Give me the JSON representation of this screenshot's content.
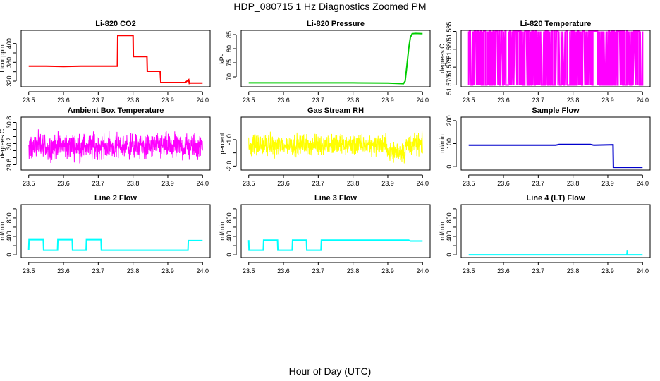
{
  "title": "HDP_080715  1 Hz Diagnostics Zoomed PM",
  "xlabel": "Hour of Day (UTC)",
  "chart_data": [
    {
      "type": "line",
      "title": "Li-820 CO2",
      "ylabel": "Licor ppm",
      "color": "#ff0000",
      "xlim": [
        23.5,
        24.0
      ],
      "ylim": [
        308,
        428
      ],
      "xticks": [
        "23.5",
        "23.6",
        "23.7",
        "23.8",
        "23.9",
        "24.0"
      ],
      "yticks": [
        320,
        340,
        360,
        380,
        400
      ],
      "yticklabels": [
        "320",
        "",
        "360",
        "",
        "400"
      ],
      "series": [
        {
          "x": [
            23.5,
            23.55,
            23.6,
            23.65,
            23.7,
            23.755,
            23.756,
            23.8,
            23.801,
            23.84,
            23.841,
            23.878,
            23.88,
            23.95,
            23.96,
            23.962,
            23.966,
            24.0
          ],
          "y": [
            352,
            352,
            351,
            352,
            352,
            352,
            417,
            417,
            372,
            372,
            341,
            341,
            317,
            317,
            323,
            315,
            316,
            316
          ]
        }
      ]
    },
    {
      "type": "line",
      "title": "Li-820 Pressure",
      "ylabel": "kPa",
      "color": "#00cc00",
      "xlim": [
        23.5,
        24.0
      ],
      "ylim": [
        66.5,
        86.5
      ],
      "xticks": [
        "23.5",
        "23.6",
        "23.7",
        "23.8",
        "23.9",
        "24.0"
      ],
      "yticks": [
        70,
        75,
        80,
        85
      ],
      "yticklabels": [
        "70",
        "75",
        "80",
        "85"
      ],
      "series": [
        {
          "x": [
            23.5,
            23.6,
            23.7,
            23.8,
            23.9,
            23.945,
            23.95,
            23.955,
            23.96,
            23.965,
            23.97,
            23.98,
            24.0
          ],
          "y": [
            67.9,
            67.9,
            67.9,
            67.9,
            67.8,
            67.6,
            68.5,
            74,
            80,
            84,
            85.3,
            85.4,
            85.3
          ]
        }
      ]
    },
    {
      "type": "line",
      "title": "Li-820 Temperature",
      "ylabel": "degrees C",
      "color": "#ff00ff",
      "xlim": [
        23.5,
        24.0
      ],
      "ylim": [
        51.5695,
        51.5853
      ],
      "xticks": [
        "23.5",
        "23.6",
        "23.7",
        "23.8",
        "23.9",
        "24.0"
      ],
      "yticks": [
        51.57,
        51.575,
        51.58,
        51.585
      ],
      "yticklabels": [
        "51.570",
        "51.575",
        "51.580",
        "51.585"
      ],
      "pattern": "toggle",
      "low": 51.57,
      "high": 51.585
    },
    {
      "type": "line",
      "title": "Ambient Box Temperature",
      "ylabel": "degrees C",
      "color": "#ff00ff",
      "xlim": [
        23.5,
        24.0
      ],
      "ylim": [
        29.45,
        30.95
      ],
      "xticks": [
        "23.5",
        "23.6",
        "23.7",
        "23.8",
        "23.9",
        "24.0"
      ],
      "yticks": [
        29.6,
        29.8,
        30.0,
        30.2,
        30.4,
        30.6,
        30.8
      ],
      "yticklabels": [
        "29.6",
        "",
        "30.2",
        "",
        "30.8"
      ],
      "yticklabels_at": [
        29.6,
        29.9,
        30.2,
        30.5,
        30.8
      ],
      "pattern": "noise",
      "mean": 30.12,
      "spread": 0.32
    },
    {
      "type": "line",
      "title": "Gas Stream RH",
      "ylabel": "percent",
      "color": "#ffff00",
      "xlim": [
        23.5,
        24.0
      ],
      "ylim": [
        -2.15,
        -0.15
      ],
      "xticks": [
        "23.5",
        "23.6",
        "23.7",
        "23.8",
        "23.9",
        "24.0"
      ],
      "yticks": [
        -2.0,
        -1.5,
        -1.0
      ],
      "yticklabels": [
        "-2.0",
        "",
        "-1.0"
      ],
      "pattern": "noise",
      "mean": -1.2,
      "spread": 0.35,
      "dip": {
        "x0": 23.9,
        "x1": 23.95,
        "offset": -0.25
      }
    },
    {
      "type": "line",
      "title": "Sample Flow",
      "ylabel": "ml/min",
      "color": "#0000cc",
      "xlim": [
        23.5,
        24.0
      ],
      "ylim": [
        -15,
        215
      ],
      "xticks": [
        "23.5",
        "23.6",
        "23.7",
        "23.8",
        "23.9",
        "24.0"
      ],
      "yticks": [
        0,
        100,
        200
      ],
      "yticklabels": [
        "0",
        "100",
        "200"
      ],
      "series": [
        {
          "x": [
            23.5,
            23.6,
            23.75,
            23.76,
            23.85,
            23.86,
            23.915,
            23.916,
            24.0
          ],
          "y": [
            93,
            93,
            93,
            96,
            96,
            93,
            95,
            -3,
            -3
          ]
        }
      ]
    },
    {
      "type": "line",
      "title": "Line 2 Flow",
      "ylabel": "ml/min",
      "color": "#00ffff",
      "xlim": [
        23.5,
        24.0
      ],
      "ylim": [
        -60,
        1090
      ],
      "xticks": [
        "23.5",
        "23.6",
        "23.7",
        "23.8",
        "23.9",
        "24.0"
      ],
      "yticks": [
        0,
        200,
        400,
        600,
        800,
        1000
      ],
      "yticklabels": [
        "0",
        "400",
        "800"
      ],
      "yticklabels_at": [
        0,
        400,
        800
      ],
      "series": [
        {
          "x": [
            23.5,
            23.501,
            23.542,
            23.543,
            23.583,
            23.584,
            23.625,
            23.626,
            23.665,
            23.666,
            23.708,
            23.709,
            23.958,
            23.959,
            24.0
          ],
          "y": [
            100,
            330,
            330,
            100,
            100,
            330,
            330,
            100,
            100,
            330,
            330,
            100,
            100,
            310,
            310
          ]
        }
      ]
    },
    {
      "type": "line",
      "title": "Line 3 Flow",
      "ylabel": "ml/min",
      "color": "#00ffff",
      "xlim": [
        23.5,
        24.0
      ],
      "ylim": [
        -60,
        1090
      ],
      "xticks": [
        "23.5",
        "23.6",
        "23.7",
        "23.8",
        "23.9",
        "24.0"
      ],
      "yticks": [
        0,
        200,
        400,
        600,
        800,
        1000
      ],
      "yticklabels": [
        "0",
        "400",
        "800"
      ],
      "yticklabels_at": [
        0,
        400,
        800
      ],
      "series": [
        {
          "x": [
            23.5,
            23.501,
            23.502,
            23.542,
            23.543,
            23.583,
            23.584,
            23.625,
            23.626,
            23.666,
            23.667,
            23.708,
            23.709,
            23.96,
            23.965,
            24.0
          ],
          "y": [
            320,
            100,
            100,
            100,
            320,
            320,
            100,
            100,
            320,
            320,
            100,
            100,
            320,
            320,
            300,
            300
          ]
        }
      ]
    },
    {
      "type": "line",
      "title": "Line 4 (LT) Flow",
      "ylabel": "ml/min",
      "color": "#00ffff",
      "xlim": [
        23.5,
        24.0
      ],
      "ylim": [
        -60,
        1090
      ],
      "xticks": [
        "23.5",
        "23.6",
        "23.7",
        "23.8",
        "23.9",
        "24.0"
      ],
      "yticks": [
        0,
        200,
        400,
        600,
        800,
        1000
      ],
      "yticklabels": [
        "0",
        "400",
        "800"
      ],
      "yticklabels_at": [
        0,
        400,
        800
      ],
      "series": [
        {
          "x": [
            23.5,
            23.95,
            23.955,
            23.956,
            23.957,
            23.958,
            24.0
          ],
          "y": [
            0,
            0,
            0,
            90,
            0,
            0,
            0
          ]
        }
      ]
    }
  ]
}
